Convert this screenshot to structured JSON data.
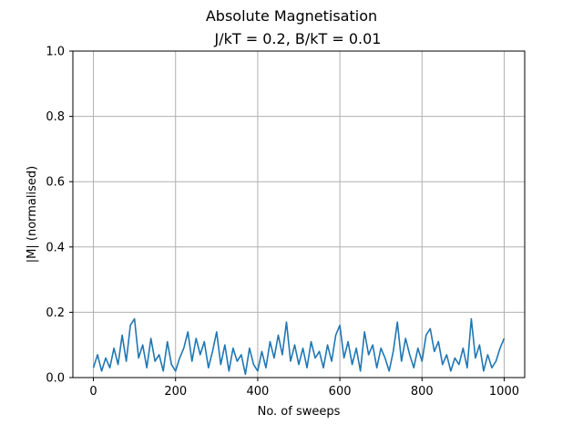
{
  "chart_data": {
    "type": "line",
    "title": "Absolute Magnetisation",
    "subtitle": "J/kT = 0.2, B/kT = 0.01",
    "xlabel": "No. of sweeps",
    "ylabel": "|M| (normalised)",
    "xlim": [
      -50,
      1050
    ],
    "ylim": [
      0.0,
      1.0
    ],
    "x_ticks": [
      0,
      200,
      400,
      600,
      800,
      1000
    ],
    "x_tick_labels": [
      "0",
      "200",
      "400",
      "600",
      "800",
      "1000"
    ],
    "y_ticks": [
      0.0,
      0.2,
      0.4,
      0.6,
      0.8,
      1.0
    ],
    "y_tick_labels": [
      "0.0",
      "0.2",
      "0.4",
      "0.6",
      "0.8",
      "1.0"
    ],
    "grid": true,
    "legend": "none",
    "series": [
      {
        "color": "#1f77b4",
        "x": [
          0,
          10,
          20,
          30,
          40,
          50,
          60,
          70,
          80,
          90,
          100,
          110,
          120,
          130,
          140,
          150,
          160,
          170,
          180,
          190,
          200,
          210,
          220,
          230,
          240,
          250,
          260,
          270,
          280,
          290,
          300,
          310,
          320,
          330,
          340,
          350,
          360,
          370,
          380,
          390,
          400,
          410,
          420,
          430,
          440,
          450,
          460,
          470,
          480,
          490,
          500,
          510,
          520,
          530,
          540,
          550,
          560,
          570,
          580,
          590,
          600,
          610,
          620,
          630,
          640,
          650,
          660,
          670,
          680,
          690,
          700,
          710,
          720,
          730,
          740,
          750,
          760,
          770,
          780,
          790,
          800,
          810,
          820,
          830,
          840,
          850,
          860,
          870,
          880,
          890,
          900,
          910,
          920,
          930,
          940,
          950,
          960,
          970,
          980,
          990,
          1000
        ],
        "y": [
          0.03,
          0.07,
          0.02,
          0.06,
          0.03,
          0.09,
          0.04,
          0.13,
          0.05,
          0.16,
          0.18,
          0.06,
          0.1,
          0.03,
          0.12,
          0.05,
          0.07,
          0.02,
          0.11,
          0.04,
          0.02,
          0.06,
          0.09,
          0.14,
          0.05,
          0.12,
          0.07,
          0.11,
          0.03,
          0.08,
          0.14,
          0.04,
          0.1,
          0.02,
          0.09,
          0.05,
          0.07,
          0.01,
          0.09,
          0.04,
          0.02,
          0.08,
          0.03,
          0.11,
          0.06,
          0.13,
          0.07,
          0.17,
          0.05,
          0.1,
          0.04,
          0.09,
          0.03,
          0.11,
          0.06,
          0.08,
          0.03,
          0.1,
          0.05,
          0.13,
          0.16,
          0.06,
          0.11,
          0.04,
          0.09,
          0.02,
          0.14,
          0.07,
          0.1,
          0.03,
          0.09,
          0.06,
          0.02,
          0.08,
          0.17,
          0.05,
          0.12,
          0.07,
          0.03,
          0.09,
          0.05,
          0.13,
          0.15,
          0.08,
          0.11,
          0.04,
          0.07,
          0.02,
          0.06,
          0.04,
          0.09,
          0.03,
          0.18,
          0.06,
          0.1,
          0.02,
          0.07,
          0.03,
          0.05,
          0.09,
          0.12
        ]
      }
    ]
  }
}
